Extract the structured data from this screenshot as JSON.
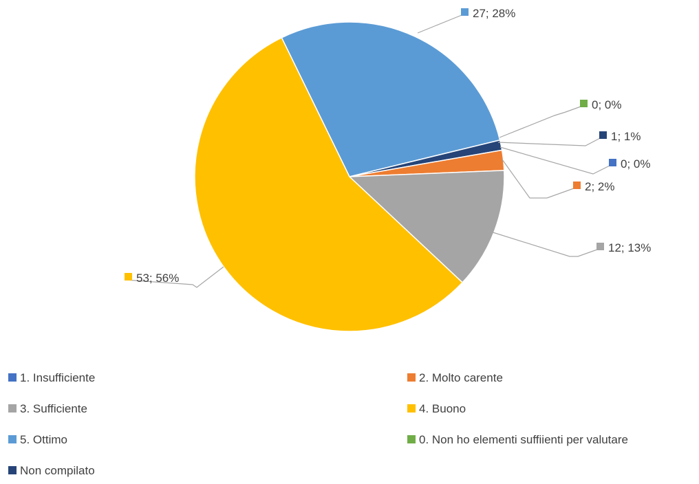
{
  "chart_data": {
    "type": "pie",
    "slices": [
      {
        "label": "1. Insufficiente",
        "value": 0,
        "percent": "0%",
        "data_label": "0; 0%",
        "color": "#4472C4"
      },
      {
        "label": "2. Molto carente",
        "value": 2,
        "percent": "2%",
        "data_label": "2; 2%",
        "color": "#ED7D31"
      },
      {
        "label": "3. Sufficiente",
        "value": 12,
        "percent": "13%",
        "data_label": "12; 13%",
        "color": "#A5A5A5"
      },
      {
        "label": "4. Buono",
        "value": 53,
        "percent": "56%",
        "data_label": "53; 56%",
        "color": "#FFC000"
      },
      {
        "label": "5. Ottimo",
        "value": 27,
        "percent": "28%",
        "data_label": "27; 28%",
        "color": "#5B9BD5"
      },
      {
        "label": "0. Non ho elementi suffiienti per valutare",
        "value": 0,
        "percent": "0%",
        "data_label": "0; 0%",
        "color": "#70AD47"
      },
      {
        "label": "Non compilato",
        "value": 1,
        "percent": "1%",
        "data_label": "1; 1%",
        "color": "#264478"
      }
    ],
    "legend_position": "bottom"
  }
}
